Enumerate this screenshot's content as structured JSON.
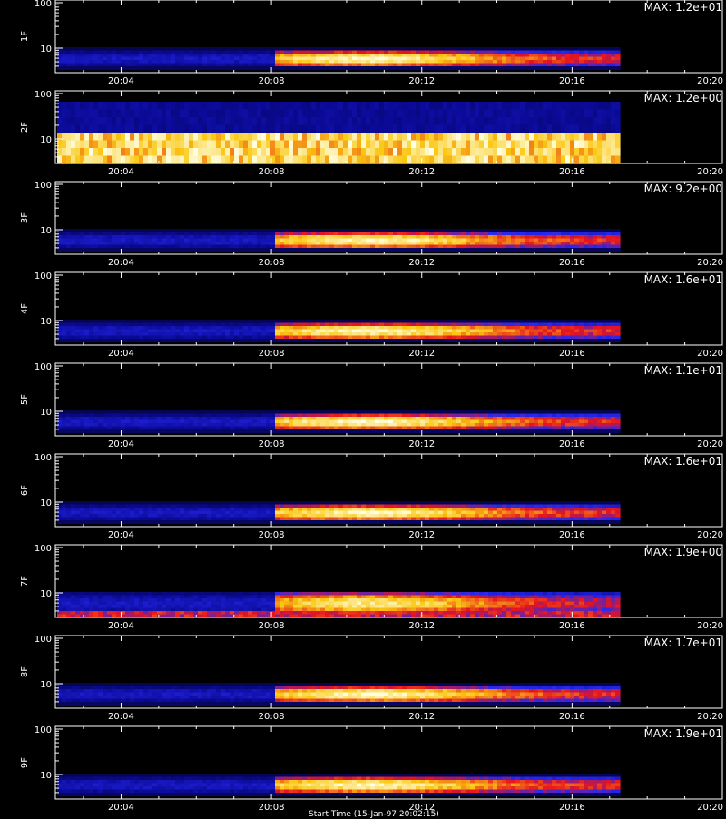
{
  "chart_data": [
    {
      "type": "heatmap",
      "ylabel": "1F",
      "max_label": "MAX: 1.2e+01",
      "max_value": 12.0
    },
    {
      "type": "heatmap",
      "ylabel": "2F",
      "max_label": "MAX: 1.2e+00",
      "max_value": 1.2
    },
    {
      "type": "heatmap",
      "ylabel": "3F",
      "max_label": "MAX: 9.2e+00",
      "max_value": 9.2
    },
    {
      "type": "heatmap",
      "ylabel": "4F",
      "max_label": "MAX: 1.6e+01",
      "max_value": 16.0
    },
    {
      "type": "heatmap",
      "ylabel": "5F",
      "max_label": "MAX: 1.1e+01",
      "max_value": 11.0
    },
    {
      "type": "heatmap",
      "ylabel": "6F",
      "max_label": "MAX: 1.6e+01",
      "max_value": 16.0
    },
    {
      "type": "heatmap",
      "ylabel": "7F",
      "max_label": "MAX: 1.9e+00",
      "max_value": 1.9
    },
    {
      "type": "heatmap",
      "ylabel": "8F",
      "max_label": "MAX: 1.7e+01",
      "max_value": 17.0
    },
    {
      "type": "heatmap",
      "ylabel": "9F",
      "max_label": "MAX: 1.9e+01",
      "max_value": 19.0
    }
  ],
  "shared_axes": {
    "x_ticks": [
      "20:04",
      "20:08",
      "20:12",
      "20:16",
      "20:20"
    ],
    "y_ticks": [
      "100",
      "10"
    ],
    "x_range_minutes": [
      "20:02:15",
      "20:20:00"
    ],
    "data_end": "20:17:15",
    "onset": "20:08:00",
    "y_scale": "log"
  },
  "footer_label": "Start Time (15-Jan-97 20:02:15)",
  "colors": {
    "background": "#000000",
    "axes": "#ffffff",
    "colormap": "black-blue-red-yellow-white"
  }
}
